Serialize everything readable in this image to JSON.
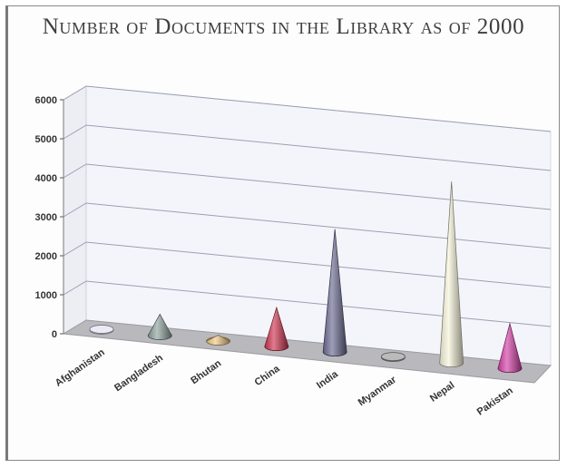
{
  "chart_data": {
    "type": "bar",
    "title": "Number of Documents in the Library as of 2000",
    "categories": [
      "Afghanistan",
      "Bangladesh",
      "Bhutan",
      "China",
      "India",
      "Myanmar",
      "Nepal",
      "Pakistan"
    ],
    "values": [
      20,
      550,
      150,
      1000,
      3150,
      30,
      4650,
      1150
    ],
    "colors": [
      "#e8e4f4",
      "#8fa29c",
      "#efc983",
      "#d0334e",
      "#6a6a92",
      "#a9a9a9",
      "#f6f4da",
      "#d43ea5"
    ],
    "yticks": [
      "0",
      "1000",
      "2000",
      "3000",
      "4000",
      "5000",
      "6000"
    ],
    "ylim": [
      0,
      6000
    ],
    "shape": "cone",
    "grid": true,
    "legend": "none"
  }
}
